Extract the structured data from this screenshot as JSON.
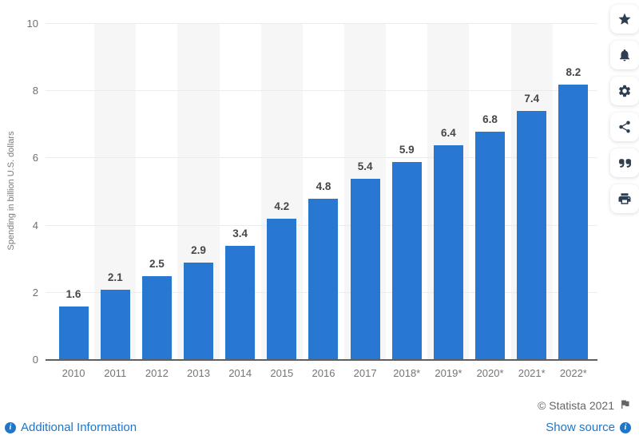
{
  "chart_data": {
    "type": "bar",
    "categories": [
      "2010",
      "2011",
      "2012",
      "2013",
      "2014",
      "2015",
      "2016",
      "2017",
      "2018*",
      "2019*",
      "2020*",
      "2021*",
      "2022*"
    ],
    "values": [
      1.6,
      2.1,
      2.5,
      2.9,
      3.4,
      4.2,
      4.8,
      5.4,
      5.9,
      6.4,
      6.8,
      7.4,
      8.2
    ],
    "title": "",
    "xlabel": "",
    "ylabel": "Spending in billion U.S. dollars",
    "ylim": [
      0,
      10
    ],
    "yticks": [
      0,
      2,
      4,
      6,
      8,
      10
    ],
    "grid": true,
    "legend": "none",
    "bar_color": "#2878d2",
    "stripe_color": "#f6f6f6"
  },
  "toolbar": {
    "items": [
      {
        "name": "favorite-button",
        "icon": "star-icon"
      },
      {
        "name": "notifications-button",
        "icon": "bell-icon"
      },
      {
        "name": "settings-button",
        "icon": "gear-icon"
      },
      {
        "name": "share-button",
        "icon": "share-icon"
      },
      {
        "name": "cite-button",
        "icon": "quote-icon"
      },
      {
        "name": "print-button",
        "icon": "print-icon"
      }
    ]
  },
  "footer": {
    "additional_info_label": "Additional Information",
    "copyright_label": "© Statista 2021",
    "show_source_label": "Show source"
  },
  "colors": {
    "bar": "#2878d2",
    "link_blue": "#2176c7",
    "icon_navy": "#2d3e50",
    "copyright_gray": "#666666"
  }
}
